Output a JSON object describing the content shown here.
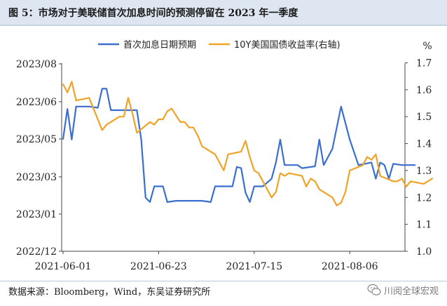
{
  "title": "图 5：市场对于美联储首次加息时间的预测停留在 2023 年一季度",
  "source": "数据来源：Bloomberg，Wind，东吴证券研究所",
  "watermark": "川阅全球宏观",
  "watermark_icon": "wechat-icon",
  "chart_data": {
    "type": "line",
    "left_axis": {
      "kind": "date",
      "ticks": [
        "2022/12",
        "2023/01",
        "2023/03",
        "2023/05",
        "2023/06",
        "2023/08"
      ],
      "tick_values": [
        "2022-12-01",
        "2023-01-01",
        "2023-03-01",
        "2023-05-01",
        "2023-06-01",
        "2023-08-01"
      ]
    },
    "right_axis": {
      "unit": "%",
      "ylim": [
        1.0,
        1.7
      ],
      "ticks": [
        "1.7",
        "1.6",
        "1.5",
        "1.4",
        "1.3",
        "1.2",
        "1.1",
        "1.0"
      ]
    },
    "x_ticks": [
      "2021-06-01",
      "2021-06-23",
      "2021-07-15",
      "2021-08-06"
    ],
    "x_range": [
      "2021-06-01",
      "2021-08-26"
    ],
    "legend_position": "top",
    "grid": false,
    "series": [
      {
        "name": "首次加息日期预期",
        "axis": "left",
        "color": "#3a6fd0",
        "points": [
          [
            "2021-06-01",
            "2023-05-01"
          ],
          [
            "2021-06-02",
            "2023-05-26"
          ],
          [
            "2021-06-03",
            "2023-04-30"
          ],
          [
            "2021-06-04",
            "2023-05-28"
          ],
          [
            "2021-06-07",
            "2023-05-28"
          ],
          [
            "2021-06-09",
            "2023-05-27"
          ],
          [
            "2021-06-10",
            "2023-06-22"
          ],
          [
            "2021-06-11",
            "2023-06-22"
          ],
          [
            "2021-06-12",
            "2023-05-25"
          ],
          [
            "2021-06-15",
            "2023-05-25"
          ],
          [
            "2021-06-18",
            "2023-05-25"
          ],
          [
            "2021-06-19",
            "2023-04-30"
          ],
          [
            "2021-06-20",
            "2023-01-27"
          ],
          [
            "2021-06-21",
            "2023-01-20"
          ],
          [
            "2021-06-22",
            "2023-02-14"
          ],
          [
            "2021-06-24",
            "2023-02-14"
          ],
          [
            "2021-06-25",
            "2023-01-20"
          ],
          [
            "2021-06-27",
            "2023-01-22"
          ],
          [
            "2021-07-03",
            "2023-01-22"
          ],
          [
            "2021-07-05",
            "2023-01-20"
          ],
          [
            "2021-07-06",
            "2023-02-14"
          ],
          [
            "2021-07-08",
            "2023-02-14"
          ],
          [
            "2021-07-10",
            "2023-02-14"
          ],
          [
            "2021-07-11",
            "2023-03-17"
          ],
          [
            "2021-07-12",
            "2023-03-15"
          ],
          [
            "2021-07-13",
            "2023-02-04"
          ],
          [
            "2021-07-14",
            "2023-01-20"
          ],
          [
            "2021-07-15",
            "2023-02-14"
          ],
          [
            "2021-07-17",
            "2023-02-14"
          ],
          [
            "2021-07-19",
            "2023-02-26"
          ],
          [
            "2021-07-20",
            "2023-03-24"
          ],
          [
            "2021-07-21",
            "2023-04-30"
          ],
          [
            "2021-07-22",
            "2023-03-20"
          ],
          [
            "2021-07-25",
            "2023-03-20"
          ],
          [
            "2021-07-26",
            "2023-03-15"
          ],
          [
            "2021-07-29",
            "2023-03-18"
          ],
          [
            "2021-07-30",
            "2023-04-30"
          ],
          [
            "2021-07-31",
            "2023-03-20"
          ],
          [
            "2021-08-02",
            "2023-04-15"
          ],
          [
            "2021-08-04",
            "2023-05-28"
          ],
          [
            "2021-08-06",
            "2023-04-30"
          ],
          [
            "2021-08-08",
            "2023-03-20"
          ],
          [
            "2021-08-11",
            "2023-03-24"
          ],
          [
            "2021-08-12",
            "2023-02-26"
          ],
          [
            "2021-08-13",
            "2023-03-24"
          ],
          [
            "2021-08-14",
            "2023-03-20"
          ],
          [
            "2021-08-15",
            "2023-02-26"
          ],
          [
            "2021-08-16",
            "2023-03-22"
          ],
          [
            "2021-08-18",
            "2023-03-20"
          ],
          [
            "2021-08-21",
            "2023-03-20"
          ]
        ]
      },
      {
        "name": "10Y美国国债收益率(右轴)",
        "axis": "right",
        "color": "#f0a326",
        "points": [
          [
            "2021-06-01",
            1.62
          ],
          [
            "2021-06-02",
            1.59
          ],
          [
            "2021-06-03",
            1.63
          ],
          [
            "2021-06-04",
            1.56
          ],
          [
            "2021-06-07",
            1.57
          ],
          [
            "2021-06-08",
            1.53
          ],
          [
            "2021-06-09",
            1.49
          ],
          [
            "2021-06-10",
            1.45
          ],
          [
            "2021-06-11",
            1.47
          ],
          [
            "2021-06-14",
            1.5
          ],
          [
            "2021-06-15",
            1.5
          ],
          [
            "2021-06-16",
            1.57
          ],
          [
            "2021-06-17",
            1.51
          ],
          [
            "2021-06-18",
            1.44
          ],
          [
            "2021-06-21",
            1.48
          ],
          [
            "2021-06-22",
            1.47
          ],
          [
            "2021-06-23",
            1.49
          ],
          [
            "2021-06-24",
            1.49
          ],
          [
            "2021-06-25",
            1.52
          ],
          [
            "2021-06-26",
            1.53
          ],
          [
            "2021-06-28",
            1.48
          ],
          [
            "2021-06-29",
            1.48
          ],
          [
            "2021-06-30",
            1.46
          ],
          [
            "2021-07-01",
            1.46
          ],
          [
            "2021-07-02",
            1.43
          ],
          [
            "2021-07-03",
            1.39
          ],
          [
            "2021-07-06",
            1.36
          ],
          [
            "2021-07-07",
            1.33
          ],
          [
            "2021-07-08",
            1.3
          ],
          [
            "2021-07-09",
            1.36
          ],
          [
            "2021-07-12",
            1.37
          ],
          [
            "2021-07-13",
            1.41
          ],
          [
            "2021-07-14",
            1.35
          ],
          [
            "2021-07-15",
            1.3
          ],
          [
            "2021-07-16",
            1.29
          ],
          [
            "2021-07-19",
            1.2
          ],
          [
            "2021-07-20",
            1.22
          ],
          [
            "2021-07-21",
            1.29
          ],
          [
            "2021-07-22",
            1.28
          ],
          [
            "2021-07-23",
            1.29
          ],
          [
            "2021-07-26",
            1.28
          ],
          [
            "2021-07-27",
            1.24
          ],
          [
            "2021-07-28",
            1.27
          ],
          [
            "2021-07-29",
            1.26
          ],
          [
            "2021-07-30",
            1.23
          ],
          [
            "2021-08-02",
            1.2
          ],
          [
            "2021-08-03",
            1.17
          ],
          [
            "2021-08-04",
            1.18
          ],
          [
            "2021-08-05",
            1.22
          ],
          [
            "2021-08-06",
            1.3
          ],
          [
            "2021-08-09",
            1.32
          ],
          [
            "2021-08-10",
            1.35
          ],
          [
            "2021-08-11",
            1.34
          ],
          [
            "2021-08-12",
            1.36
          ],
          [
            "2021-08-13",
            1.28
          ],
          [
            "2021-08-16",
            1.26
          ],
          [
            "2021-08-17",
            1.26
          ],
          [
            "2021-08-18",
            1.27
          ],
          [
            "2021-08-19",
            1.24
          ],
          [
            "2021-08-20",
            1.26
          ],
          [
            "2021-08-23",
            1.25
          ],
          [
            "2021-08-24",
            1.26
          ],
          [
            "2021-08-25",
            1.27
          ]
        ]
      }
    ]
  }
}
